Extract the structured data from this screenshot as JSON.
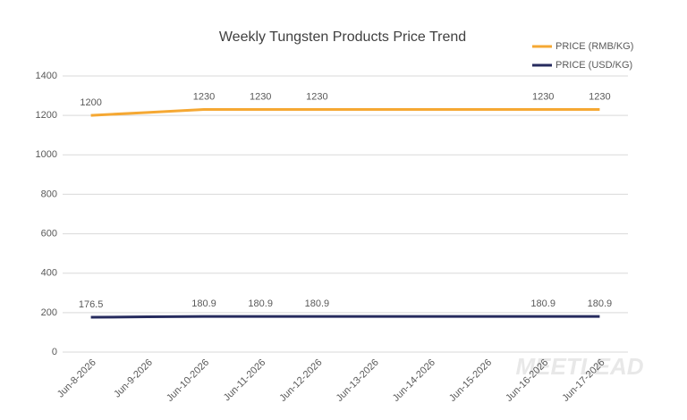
{
  "chart_data": {
    "type": "line",
    "title": "Weekly Tungsten Products Price Trend",
    "categories": [
      "Jun-8-2026",
      "Jun-9-2026",
      "Jun-10-2026",
      "Jun-11-2026",
      "Jun-12-2026",
      "Jun-13-2026",
      "Jun-14-2026",
      "Jun-15-2026",
      "Jun-16-2026",
      "Jun-17-2026"
    ],
    "series": [
      {
        "name": "PRICE (RMB/KG)",
        "color": "#f5a833",
        "values": [
          1200,
          1215,
          1230,
          1230,
          1230,
          1230,
          1230,
          1230,
          1230,
          1230
        ],
        "value_labels": [
          "1200",
          null,
          "1230",
          "1230",
          "1230",
          null,
          null,
          null,
          "1230",
          "1230"
        ]
      },
      {
        "name": "PRICE (USD/KG)",
        "color": "#262b5e",
        "values": [
          176.5,
          178.7,
          180.9,
          180.9,
          180.9,
          180.9,
          180.9,
          180.9,
          180.9,
          180.9
        ],
        "value_labels": [
          "176.5",
          null,
          "180.9",
          "180.9",
          "180.9",
          null,
          null,
          null,
          "180.9",
          "180.9"
        ]
      }
    ],
    "ylim": [
      0,
      1400
    ],
    "yticks": [
      0,
      200,
      400,
      600,
      800,
      1000,
      1200,
      1400
    ],
    "grid": true,
    "legend": "top-right",
    "watermark": "MEETLEAD"
  }
}
